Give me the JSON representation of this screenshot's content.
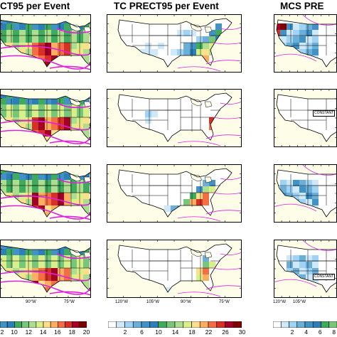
{
  "columns": [
    {
      "title": "CT95 per Event"
    },
    {
      "title": "TC PRECT95 per Event"
    },
    {
      "title": "MCS PRE"
    }
  ],
  "constant_label": "CONSTANT",
  "axis_labels": {
    "left": [
      "90°W",
      "75°W"
    ],
    "middle": [
      "120°W",
      "105°W",
      "90°W",
      "75°W"
    ],
    "right": [
      "120°W",
      "105°W"
    ]
  },
  "colorbars": {
    "left": [
      "10",
      "12",
      "14",
      "16",
      "18",
      "20"
    ],
    "left_partial": "2",
    "middle": [
      "2",
      "6",
      "10",
      "14",
      "18",
      "22",
      "26",
      "30"
    ],
    "right": [
      "2",
      "4",
      "6",
      "8"
    ]
  },
  "colors": {
    "ocean": "#fdfde8",
    "land": "#ffffff",
    "contour": "#e020e0",
    "palette": [
      "#ffffff",
      "#cfe9fb",
      "#9fd3f5",
      "#6baed6",
      "#4292c6",
      "#2c7fb8",
      "#41ab5d",
      "#78c679",
      "#addd8e",
      "#d9ef8b",
      "#fee08b",
      "#fdae61",
      "#f46d43",
      "#d73027",
      "#a50026",
      "#7f0000"
    ]
  }
}
